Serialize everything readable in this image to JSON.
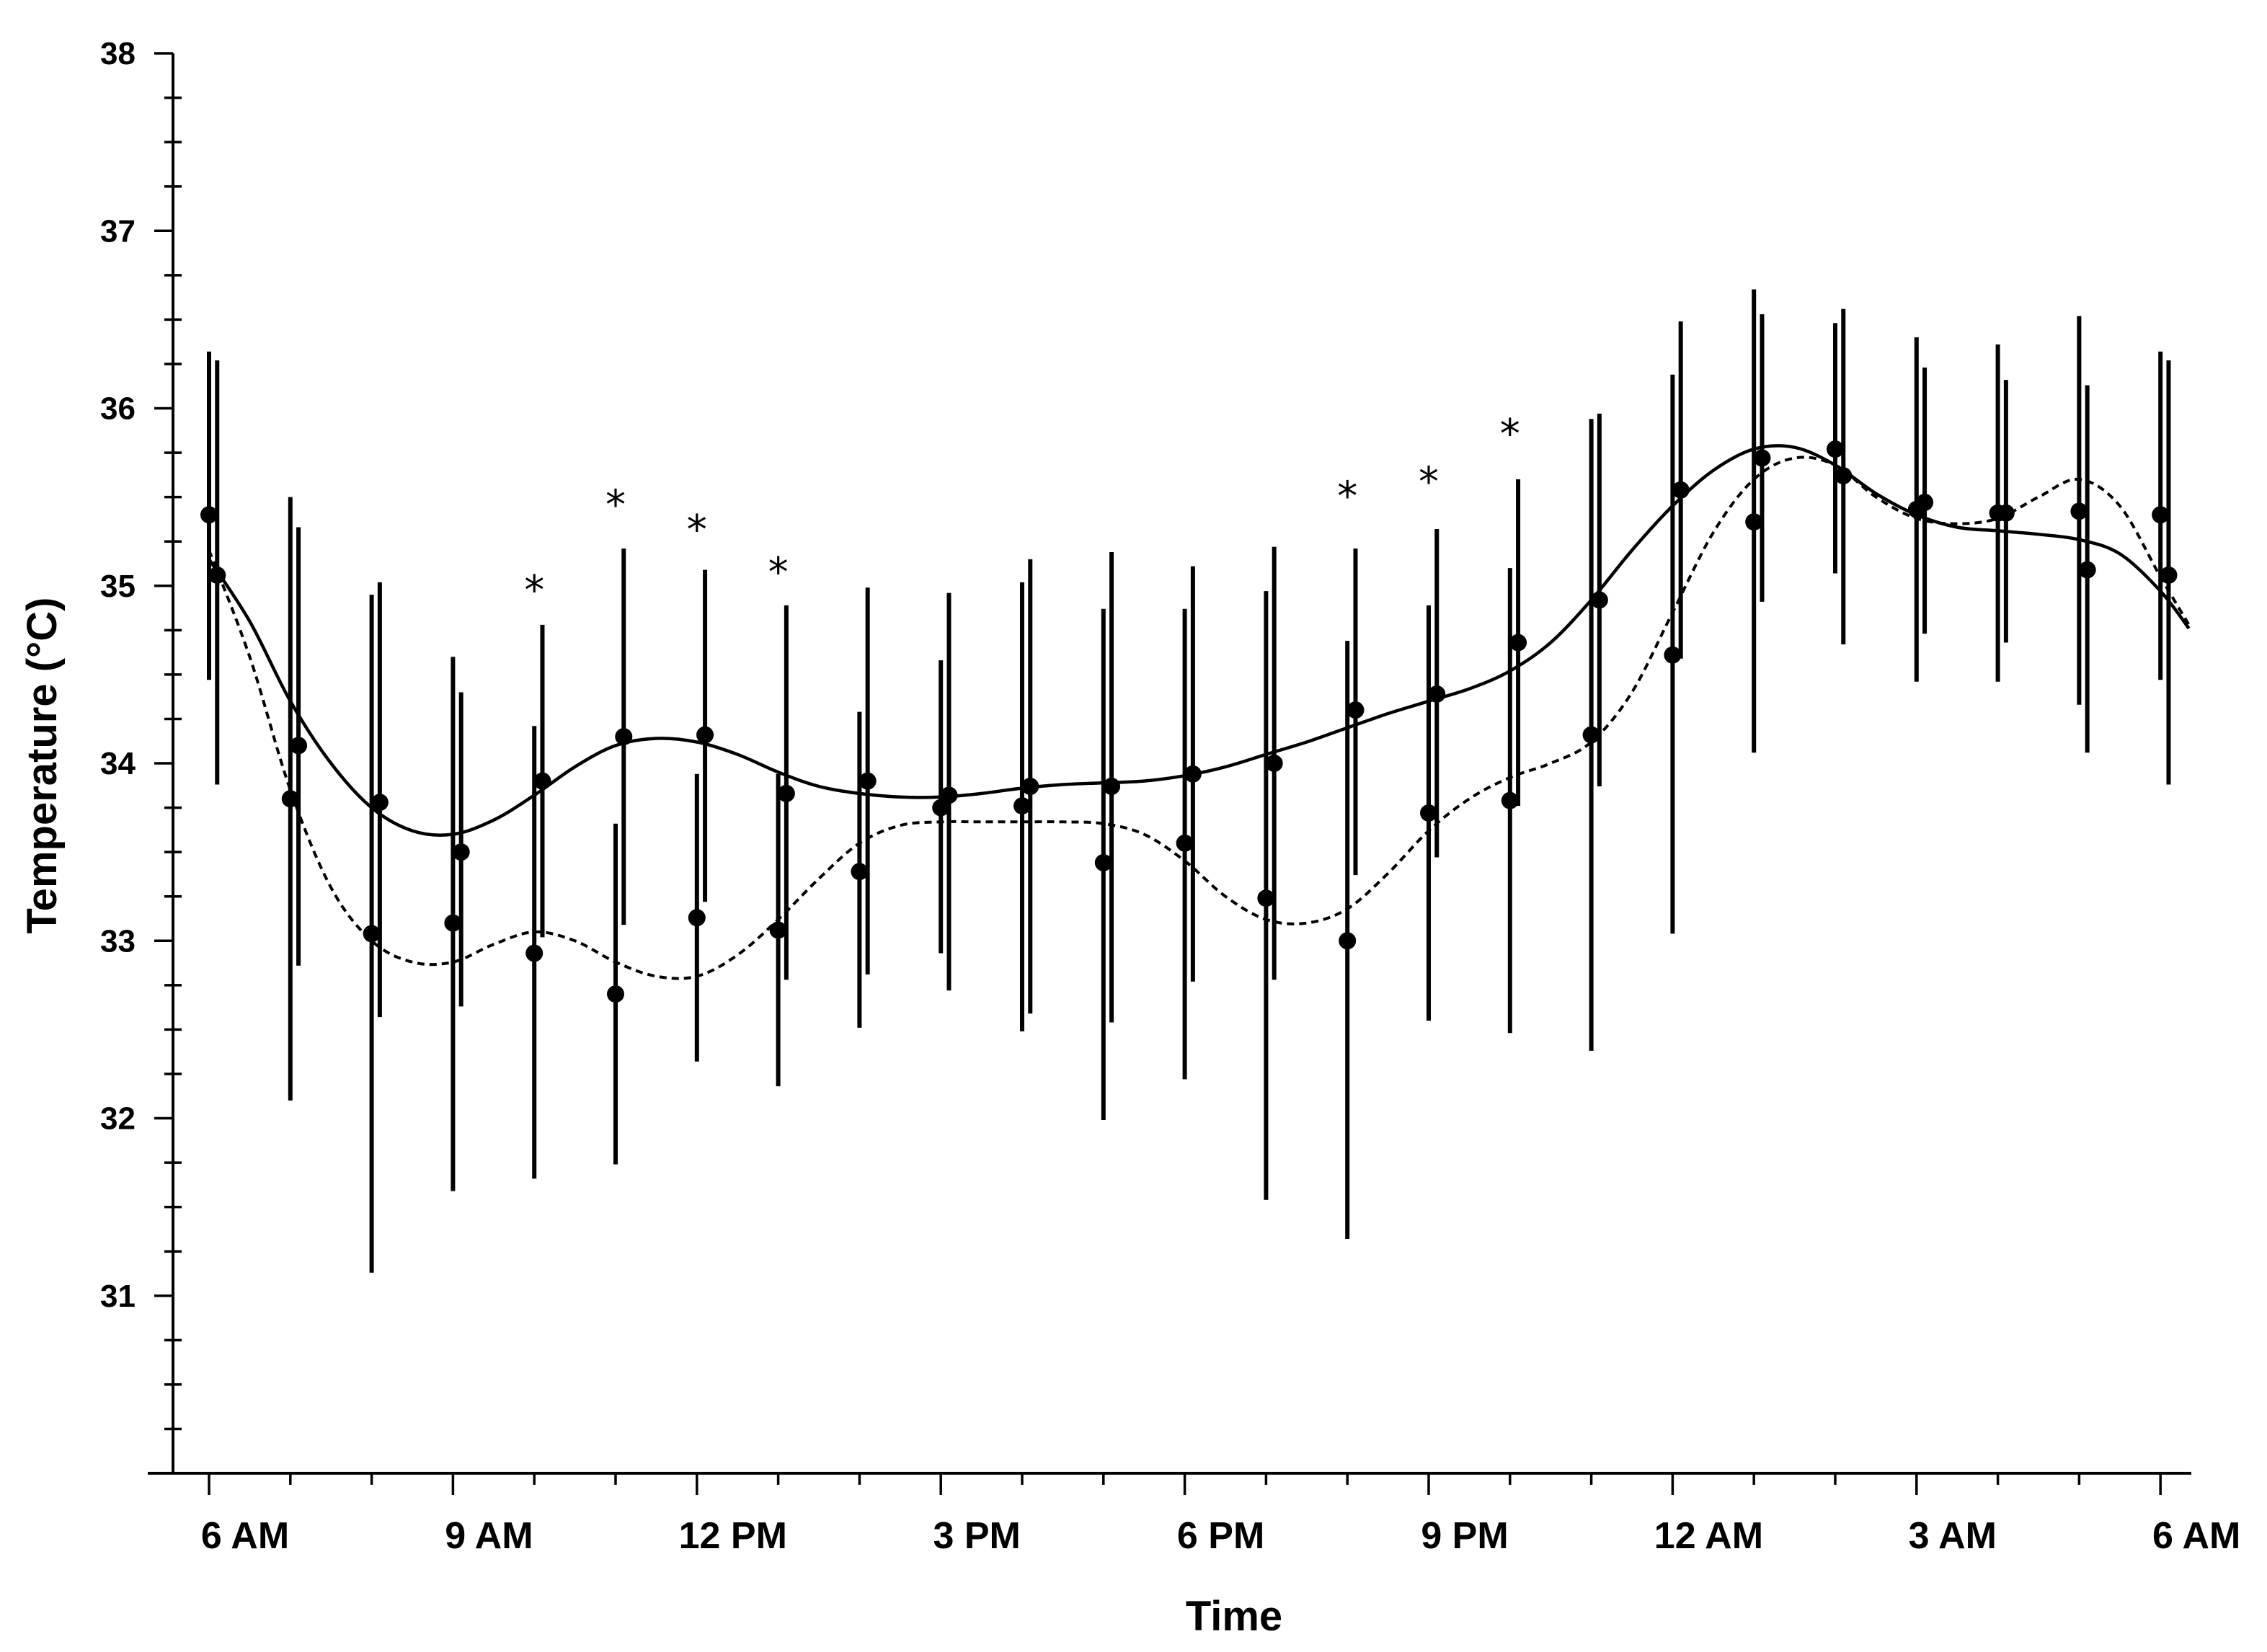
{
  "chart_data": {
    "type": "line",
    "title": "",
    "xlabel": "Time",
    "ylabel": "Temperature (°C)",
    "ylim": [
      30,
      38
    ],
    "xlim": [
      5.75,
      30.35
    ],
    "grid": false,
    "legend": "none",
    "y_ticks": [
      {
        "value": 31,
        "label": "31"
      },
      {
        "value": 32,
        "label": "32"
      },
      {
        "value": 33,
        "label": "33"
      },
      {
        "value": 34,
        "label": "34"
      },
      {
        "value": 35,
        "label": "35"
      },
      {
        "value": 36,
        "label": "36"
      },
      {
        "value": 37,
        "label": "37"
      },
      {
        "value": 38,
        "label": "38"
      }
    ],
    "x_ticks": [
      {
        "value": 6,
        "label": "6 AM"
      },
      {
        "value": 9,
        "label": "9 AM"
      },
      {
        "value": 12,
        "label": "12 PM"
      },
      {
        "value": 15,
        "label": "3 PM"
      },
      {
        "value": 18,
        "label": "6 PM"
      },
      {
        "value": 21,
        "label": "9 PM"
      },
      {
        "value": 24,
        "label": "12 AM"
      },
      {
        "value": 27,
        "label": "3 AM"
      },
      {
        "value": 30,
        "label": "6 AM"
      }
    ],
    "series": [
      {
        "style": "solid",
        "color": "#000000",
        "points": [
          {
            "x": 6.1,
            "y": 35.06,
            "lo": 33.88,
            "hi": 36.27
          },
          {
            "x": 7.1,
            "y": 34.1,
            "lo": 32.86,
            "hi": 35.33
          },
          {
            "x": 8.1,
            "y": 33.78,
            "lo": 32.57,
            "hi": 35.02
          },
          {
            "x": 9.1,
            "y": 33.5,
            "lo": 32.63,
            "hi": 34.4
          },
          {
            "x": 10.1,
            "y": 33.9,
            "lo": 33.02,
            "hi": 34.78
          },
          {
            "x": 11.1,
            "y": 34.15,
            "lo": 33.09,
            "hi": 35.21
          },
          {
            "x": 12.1,
            "y": 34.16,
            "lo": 33.22,
            "hi": 35.09
          },
          {
            "x": 13.1,
            "y": 33.83,
            "lo": 32.78,
            "hi": 34.89
          },
          {
            "x": 14.1,
            "y": 33.9,
            "lo": 32.81,
            "hi": 34.99
          },
          {
            "x": 15.1,
            "y": 33.82,
            "lo": 32.72,
            "hi": 34.96
          },
          {
            "x": 16.1,
            "y": 33.87,
            "lo": 32.59,
            "hi": 35.15
          },
          {
            "x": 17.1,
            "y": 33.87,
            "lo": 32.54,
            "hi": 35.19
          },
          {
            "x": 18.1,
            "y": 33.94,
            "lo": 32.77,
            "hi": 35.11
          },
          {
            "x": 19.1,
            "y": 34.0,
            "lo": 32.78,
            "hi": 35.22
          },
          {
            "x": 20.1,
            "y": 34.3,
            "lo": 33.37,
            "hi": 35.21
          },
          {
            "x": 21.1,
            "y": 34.39,
            "lo": 33.47,
            "hi": 35.32
          },
          {
            "x": 22.1,
            "y": 34.68,
            "lo": 33.76,
            "hi": 35.6
          },
          {
            "x": 23.1,
            "y": 34.92,
            "lo": 33.87,
            "hi": 35.97
          },
          {
            "x": 24.1,
            "y": 35.54,
            "lo": 34.59,
            "hi": 36.49
          },
          {
            "x": 25.1,
            "y": 35.72,
            "lo": 34.91,
            "hi": 36.53
          },
          {
            "x": 26.1,
            "y": 35.62,
            "lo": 34.67,
            "hi": 36.56
          },
          {
            "x": 27.1,
            "y": 35.47,
            "lo": 34.73,
            "hi": 36.23
          },
          {
            "x": 28.1,
            "y": 35.41,
            "lo": 34.68,
            "hi": 36.16
          },
          {
            "x": 29.1,
            "y": 35.09,
            "lo": 34.06,
            "hi": 36.13
          },
          {
            "x": 30.1,
            "y": 35.06,
            "lo": 33.88,
            "hi": 36.27
          }
        ],
        "curve": [
          [
            6.0,
            35.15
          ],
          [
            6.5,
            34.8
          ],
          [
            7.0,
            34.35
          ],
          [
            7.5,
            34.0
          ],
          [
            8.0,
            33.75
          ],
          [
            8.5,
            33.62
          ],
          [
            9.0,
            33.6
          ],
          [
            9.5,
            33.68
          ],
          [
            10.0,
            33.82
          ],
          [
            10.5,
            33.98
          ],
          [
            11.0,
            34.1
          ],
          [
            11.5,
            34.14
          ],
          [
            12.0,
            34.12
          ],
          [
            12.5,
            34.05
          ],
          [
            13.0,
            33.95
          ],
          [
            13.5,
            33.87
          ],
          [
            14.0,
            33.83
          ],
          [
            14.5,
            33.81
          ],
          [
            15.0,
            33.81
          ],
          [
            15.5,
            33.83
          ],
          [
            16.0,
            33.86
          ],
          [
            16.5,
            33.88
          ],
          [
            17.0,
            33.89
          ],
          [
            17.5,
            33.9
          ],
          [
            18.0,
            33.93
          ],
          [
            18.5,
            33.98
          ],
          [
            19.0,
            34.05
          ],
          [
            19.5,
            34.12
          ],
          [
            20.0,
            34.2
          ],
          [
            20.5,
            34.28
          ],
          [
            21.0,
            34.35
          ],
          [
            21.5,
            34.42
          ],
          [
            22.0,
            34.52
          ],
          [
            22.5,
            34.68
          ],
          [
            23.0,
            34.92
          ],
          [
            23.5,
            35.2
          ],
          [
            24.0,
            35.45
          ],
          [
            24.5,
            35.65
          ],
          [
            25.0,
            35.77
          ],
          [
            25.5,
            35.78
          ],
          [
            26.0,
            35.68
          ],
          [
            26.5,
            35.52
          ],
          [
            27.0,
            35.4
          ],
          [
            27.5,
            35.33
          ],
          [
            28.0,
            35.31
          ],
          [
            28.5,
            35.29
          ],
          [
            29.0,
            35.26
          ],
          [
            29.5,
            35.18
          ],
          [
            30.0,
            34.97
          ],
          [
            30.35,
            34.76
          ]
        ]
      },
      {
        "style": "dashed",
        "color": "#000000",
        "points": [
          {
            "x": 6.0,
            "y": 35.4,
            "lo": 34.47,
            "hi": 36.32
          },
          {
            "x": 7.0,
            "y": 33.8,
            "lo": 32.1,
            "hi": 35.5
          },
          {
            "x": 8.0,
            "y": 33.04,
            "lo": 31.13,
            "hi": 34.95
          },
          {
            "x": 9.0,
            "y": 33.1,
            "lo": 31.59,
            "hi": 34.6
          },
          {
            "x": 10.0,
            "y": 32.93,
            "lo": 31.66,
            "hi": 34.21
          },
          {
            "x": 11.0,
            "y": 32.7,
            "lo": 31.74,
            "hi": 33.66
          },
          {
            "x": 12.0,
            "y": 33.13,
            "lo": 32.32,
            "hi": 33.94
          },
          {
            "x": 13.0,
            "y": 33.06,
            "lo": 32.18,
            "hi": 33.94
          },
          {
            "x": 14.0,
            "y": 33.39,
            "lo": 32.51,
            "hi": 34.29
          },
          {
            "x": 15.0,
            "y": 33.75,
            "lo": 32.93,
            "hi": 34.58
          },
          {
            "x": 16.0,
            "y": 33.76,
            "lo": 32.49,
            "hi": 35.02
          },
          {
            "x": 17.0,
            "y": 33.44,
            "lo": 31.99,
            "hi": 34.87
          },
          {
            "x": 18.0,
            "y": 33.55,
            "lo": 32.22,
            "hi": 34.87
          },
          {
            "x": 19.0,
            "y": 33.24,
            "lo": 31.54,
            "hi": 34.97
          },
          {
            "x": 20.0,
            "y": 33.0,
            "lo": 31.32,
            "hi": 34.69
          },
          {
            "x": 21.0,
            "y": 33.72,
            "lo": 32.55,
            "hi": 34.89
          },
          {
            "x": 22.0,
            "y": 33.79,
            "lo": 32.48,
            "hi": 35.1
          },
          {
            "x": 23.0,
            "y": 34.16,
            "lo": 32.38,
            "hi": 35.94
          },
          {
            "x": 24.0,
            "y": 34.61,
            "lo": 33.04,
            "hi": 36.19
          },
          {
            "x": 25.0,
            "y": 35.36,
            "lo": 34.06,
            "hi": 36.67
          },
          {
            "x": 26.0,
            "y": 35.77,
            "lo": 35.07,
            "hi": 36.48
          },
          {
            "x": 27.0,
            "y": 35.43,
            "lo": 34.46,
            "hi": 36.4
          },
          {
            "x": 28.0,
            "y": 35.41,
            "lo": 34.46,
            "hi": 36.36
          },
          {
            "x": 29.0,
            "y": 35.42,
            "lo": 34.33,
            "hi": 36.52
          },
          {
            "x": 30.0,
            "y": 35.4,
            "lo": 34.47,
            "hi": 36.32
          }
        ],
        "curve": [
          [
            6.0,
            35.2
          ],
          [
            6.5,
            34.6
          ],
          [
            7.0,
            33.85
          ],
          [
            7.5,
            33.3
          ],
          [
            8.0,
            33.0
          ],
          [
            8.5,
            32.88
          ],
          [
            9.0,
            32.88
          ],
          [
            9.5,
            32.98
          ],
          [
            10.0,
            33.05
          ],
          [
            10.5,
            33.0
          ],
          [
            11.0,
            32.88
          ],
          [
            11.5,
            32.8
          ],
          [
            12.0,
            32.8
          ],
          [
            12.5,
            32.92
          ],
          [
            13.0,
            33.12
          ],
          [
            13.5,
            33.35
          ],
          [
            14.0,
            33.55
          ],
          [
            14.5,
            33.65
          ],
          [
            15.0,
            33.67
          ],
          [
            15.5,
            33.67
          ],
          [
            16.0,
            33.67
          ],
          [
            16.5,
            33.67
          ],
          [
            17.0,
            33.66
          ],
          [
            17.5,
            33.6
          ],
          [
            18.0,
            33.45
          ],
          [
            18.5,
            33.25
          ],
          [
            19.0,
            33.12
          ],
          [
            19.5,
            33.1
          ],
          [
            20.0,
            33.18
          ],
          [
            20.5,
            33.38
          ],
          [
            21.0,
            33.62
          ],
          [
            21.5,
            33.8
          ],
          [
            22.0,
            33.92
          ],
          [
            22.5,
            34.0
          ],
          [
            23.0,
            34.12
          ],
          [
            23.5,
            34.4
          ],
          [
            24.0,
            34.85
          ],
          [
            24.5,
            35.3
          ],
          [
            25.0,
            35.6
          ],
          [
            25.5,
            35.72
          ],
          [
            26.0,
            35.68
          ],
          [
            26.5,
            35.5
          ],
          [
            27.0,
            35.38
          ],
          [
            27.5,
            35.35
          ],
          [
            28.0,
            35.38
          ],
          [
            28.5,
            35.5
          ],
          [
            29.0,
            35.6
          ],
          [
            29.5,
            35.45
          ],
          [
            30.0,
            35.05
          ],
          [
            30.35,
            34.78
          ]
        ]
      }
    ],
    "annotations": [
      {
        "x": 10.0,
        "y": 35.02,
        "text": "*"
      },
      {
        "x": 11.0,
        "y": 35.5,
        "text": "*"
      },
      {
        "x": 12.0,
        "y": 35.36,
        "text": "*"
      },
      {
        "x": 13.0,
        "y": 35.12,
        "text": "*"
      },
      {
        "x": 20.0,
        "y": 35.55,
        "text": "*"
      },
      {
        "x": 21.0,
        "y": 35.63,
        "text": "*"
      },
      {
        "x": 22.0,
        "y": 35.9,
        "text": "*"
      }
    ]
  }
}
